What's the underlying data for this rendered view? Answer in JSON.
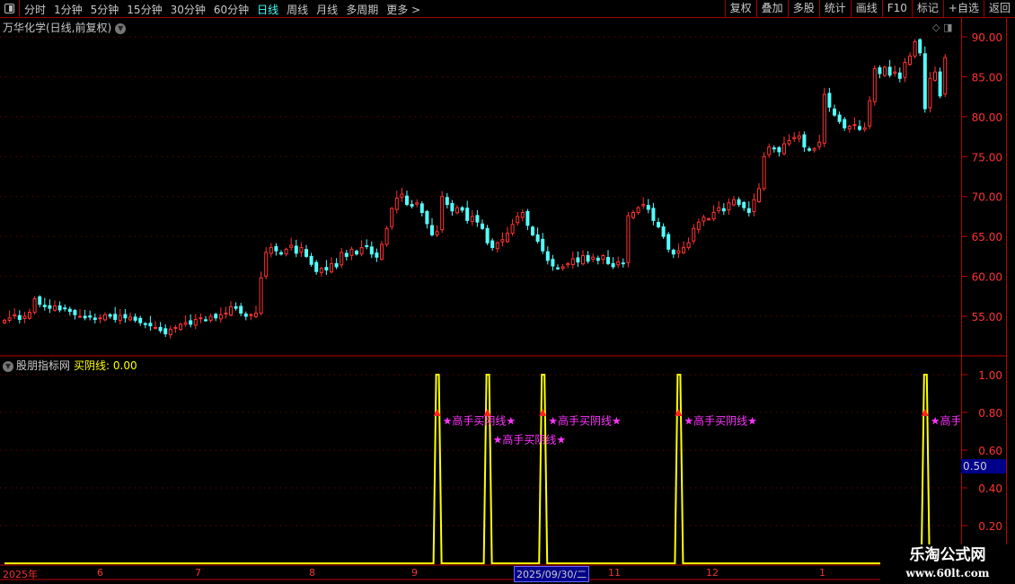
{
  "toolbar": {
    "periods": [
      "分时",
      "1分钟",
      "5分钟",
      "15分钟",
      "30分钟",
      "60分钟",
      "日线",
      "周线",
      "月线",
      "多周期",
      "更多 >"
    ],
    "active_period": "日线",
    "buttons": [
      "复权",
      "叠加",
      "多股",
      "统计",
      "画线",
      "F10",
      "标记",
      "+自选",
      "返回"
    ]
  },
  "chart_title": "万华化学(日线,前复权)",
  "indicator": {
    "name": "股朋指标网",
    "value_label": "买阴线:",
    "value": "0.00",
    "signal_text": "★高手买阴线★",
    "cursor_value": "0.50"
  },
  "colors": {
    "up": "#ff3232",
    "down": "#54ffff",
    "grid": "#8b0000",
    "axis_text": "#ff3232",
    "indicator_line": "#ffff00",
    "signal_text": "#ff33ff",
    "cursor_box": "#00008b"
  },
  "date_axis": {
    "labels": [
      "2025年",
      "6",
      "7",
      "8",
      "9",
      "11",
      "12",
      "1"
    ],
    "cursor_date": "2025/09/30/二"
  },
  "watermark": {
    "name": "乐淘公式网",
    "url": "www.60lt.com"
  },
  "chart_data": [
    {
      "type": "candlestick",
      "title": "万华化学(日线,前复权)",
      "ylim": [
        52,
        91
      ],
      "yticks": [
        55,
        60,
        65,
        70,
        75,
        80,
        85,
        90
      ],
      "grid": true,
      "close": [
        54.5,
        54.8,
        55.2,
        54.6,
        55.0,
        55.5,
        57.2,
        56.5,
        56.2,
        56.0,
        56.3,
        55.8,
        56.0,
        55.6,
        55.2,
        55.0,
        54.8,
        54.9,
        54.6,
        54.8,
        55.2,
        55.0,
        54.6,
        55.1,
        54.8,
        54.9,
        54.5,
        54.2,
        54.0,
        53.8,
        53.6,
        53.2,
        52.8,
        53.4,
        53.6,
        54.0,
        54.2,
        54.0,
        54.6,
        54.8,
        54.5,
        55.0,
        54.8,
        55.2,
        55.4,
        56.2,
        56.0,
        55.4,
        55.0,
        55.2,
        55.4,
        59.8,
        63.0,
        63.6,
        63.2,
        62.8,
        63.4,
        63.9,
        62.9,
        63.6,
        62.5,
        61.5,
        60.6,
        61.0,
        60.8,
        61.6,
        61.2,
        63.0,
        62.5,
        63.4,
        62.8,
        63.6,
        63.8,
        62.8,
        62.4,
        64.0,
        66.0,
        68.5,
        69.8,
        70.3,
        69.0,
        68.8,
        69.2,
        68.0,
        66.6,
        65.2,
        65.6,
        70.0,
        69.0,
        68.2,
        68.6,
        68.3,
        67.0,
        67.5,
        66.8,
        66.0,
        64.2,
        63.6,
        64.2,
        64.6,
        65.4,
        66.5,
        67.5,
        68.0,
        66.4,
        65.2,
        64.4,
        63.2,
        62.0,
        61.3,
        61.0,
        61.2,
        61.6,
        62.2,
        61.8,
        62.6,
        61.9,
        62.4,
        62.0,
        62.6,
        61.6,
        61.2,
        61.8,
        61.6,
        67.6,
        68.0,
        68.6,
        69.0,
        68.4,
        67.0,
        66.2,
        65.0,
        63.4,
        62.8,
        63.2,
        63.6,
        64.2,
        66.0,
        66.8,
        67.4,
        67.2,
        68.0,
        68.6,
        68.2,
        69.2,
        69.6,
        69.0,
        68.6,
        68.0,
        69.6,
        71.0,
        75.0,
        76.2,
        76.0,
        75.6,
        76.6,
        77.0,
        77.4,
        77.6,
        76.2,
        75.8,
        76.0,
        76.8,
        82.8,
        81.2,
        80.2,
        79.4,
        78.6,
        78.8,
        79.0,
        78.4,
        78.6,
        82.0,
        86.0,
        85.4,
        86.2,
        85.2,
        85.6,
        84.8,
        86.8,
        87.6,
        89.4,
        88.0,
        81.0,
        84.8,
        85.6,
        82.6,
        87.4
      ]
    },
    {
      "type": "line",
      "series": [
        {
          "name": "买阴线",
          "signal_bars": [
            86,
            96,
            107,
            134,
            183
          ]
        }
      ],
      "ylim": [
        0,
        1.05
      ],
      "yticks": [
        0.2,
        0.4,
        0.6,
        0.8,
        1.0
      ]
    }
  ]
}
